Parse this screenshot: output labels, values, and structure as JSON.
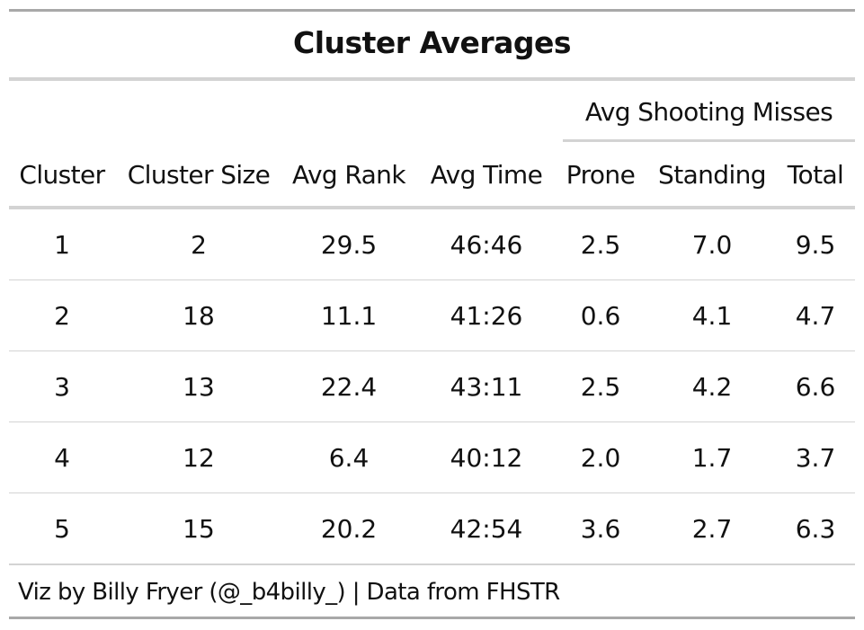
{
  "chart_data": {
    "type": "table",
    "title": "Cluster Averages",
    "spanner": "Avg Shooting Misses",
    "columns": [
      "Cluster",
      "Cluster Size",
      "Avg Rank",
      "Avg Time",
      "Prone",
      "Standing",
      "Total"
    ],
    "rows": [
      [
        "1",
        "2",
        "29.5",
        "46:46",
        "2.5",
        "7.0",
        "9.5"
      ],
      [
        "2",
        "18",
        "11.1",
        "41:26",
        "0.6",
        "4.1",
        "4.7"
      ],
      [
        "3",
        "13",
        "22.4",
        "43:11",
        "2.5",
        "4.2",
        "6.6"
      ],
      [
        "4",
        "12",
        "6.4",
        "40:12",
        "2.0",
        "1.7",
        "3.7"
      ],
      [
        "5",
        "15",
        "20.2",
        "42:54",
        "3.6",
        "2.7",
        "6.3"
      ]
    ],
    "footnote": "Viz by Billy Fryer (@_b4billy_) | Data from FHSTR"
  }
}
